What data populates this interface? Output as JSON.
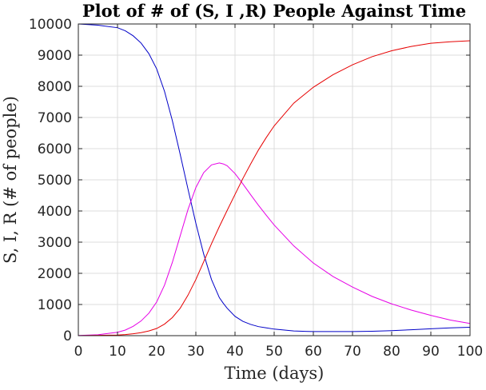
{
  "chart_data": {
    "type": "line",
    "title": "Plot of # of (S, I ,R) People Against Time",
    "xlabel": "Time (days)",
    "ylabel": "S, I, R (# of people)",
    "xlim": [
      0,
      100
    ],
    "ylim": [
      0,
      10000
    ],
    "xticks": [
      0,
      10,
      20,
      30,
      40,
      50,
      60,
      70,
      80,
      90,
      100
    ],
    "yticks": [
      0,
      1000,
      2000,
      3000,
      4000,
      5000,
      6000,
      7000,
      8000,
      9000,
      10000
    ],
    "grid": true,
    "legend": "none",
    "x": [
      0,
      5,
      10,
      12,
      14,
      16,
      18,
      20,
      22,
      24,
      26,
      28,
      30,
      32,
      34,
      36,
      37,
      38,
      40,
      42,
      44,
      46,
      48,
      50,
      55,
      60,
      65,
      70,
      75,
      80,
      85,
      90,
      95,
      100
    ],
    "series": [
      {
        "color": "#0000c8",
        "values": [
          10000,
          9960,
          9880,
          9780,
          9620,
          9390,
          9050,
          8560,
          7840,
          6900,
          5820,
          4700,
          3610,
          2620,
          1800,
          1220,
          1040,
          880,
          620,
          460,
          360,
          290,
          250,
          210,
          150,
          130,
          130,
          130,
          140,
          160,
          190,
          220,
          250,
          270
        ]
      },
      {
        "color": "#e600e6",
        "values": [
          5,
          30,
          110,
          180,
          300,
          470,
          720,
          1080,
          1620,
          2350,
          3200,
          4050,
          4750,
          5230,
          5480,
          5540,
          5510,
          5450,
          5200,
          4870,
          4520,
          4180,
          3860,
          3550,
          2880,
          2330,
          1900,
          1560,
          1260,
          1020,
          820,
          650,
          500,
          390
        ]
      },
      {
        "color": "#e60000",
        "values": [
          0,
          10,
          20,
          35,
          60,
          95,
          150,
          230,
          370,
          580,
          880,
          1300,
          1800,
          2370,
          2950,
          3500,
          3760,
          4020,
          4530,
          5040,
          5510,
          5960,
          6360,
          6730,
          7460,
          7970,
          8370,
          8690,
          8950,
          9140,
          9280,
          9380,
          9430,
          9460
        ]
      }
    ]
  }
}
